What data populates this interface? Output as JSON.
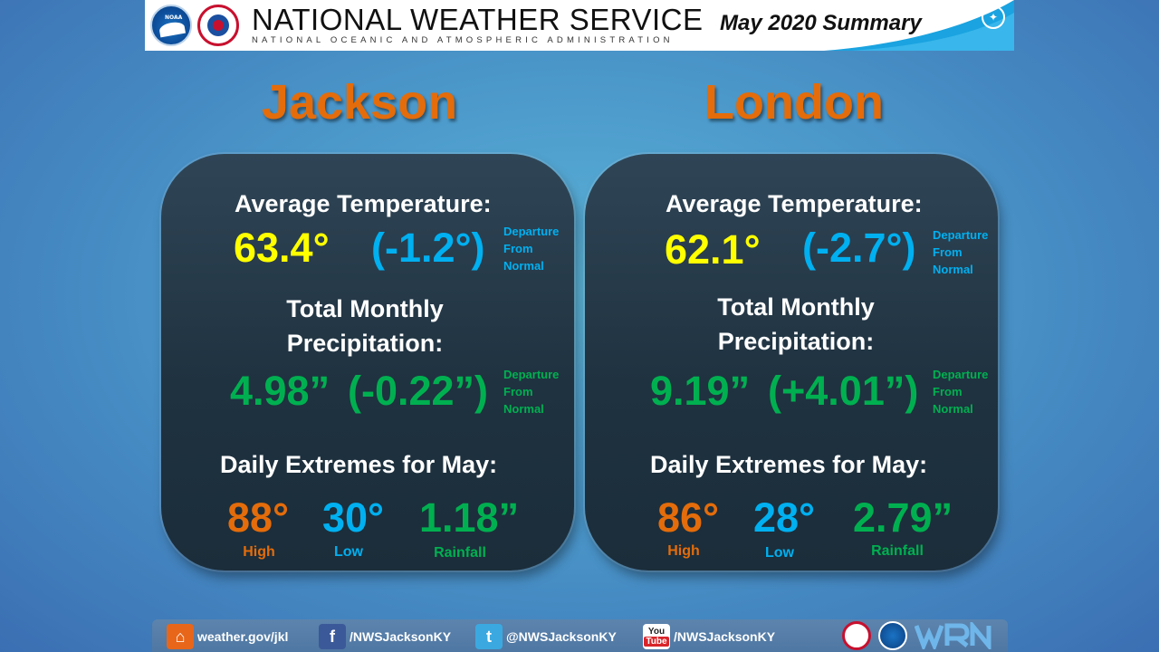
{
  "header": {
    "logo_left_text": "NOAA",
    "title": "NATIONAL WEATHER SERVICE",
    "subtitle": "NATIONAL OCEANIC AND ATMOSPHERIC ADMINISTRATION",
    "summary": "May 2020 Summary"
  },
  "cities": [
    {
      "name": "Jackson",
      "avg_temp_label": "Average Temperature:",
      "avg_temp": "63.4°",
      "avg_temp_departure": "(-1.2°)",
      "departure_note": [
        "Departure",
        "From",
        "Normal"
      ],
      "precip_label_1": "Total Monthly",
      "precip_label_2": "Precipitation:",
      "precip_value": "4.98”",
      "precip_departure": "(-0.22”)",
      "extremes_label": "Daily Extremes for May:",
      "high": "88°",
      "high_label": "High",
      "low": "30°",
      "low_label": "Low",
      "rain": "1.18”",
      "rain_label": "Rainfall"
    },
    {
      "name": "London",
      "avg_temp_label": "Average Temperature:",
      "avg_temp": "62.1°",
      "avg_temp_departure": "(-2.7°)",
      "departure_note": [
        "Departure",
        "From",
        "Normal"
      ],
      "precip_label_1": "Total Monthly",
      "precip_label_2": "Precipitation:",
      "precip_value": "9.19”",
      "precip_departure": "(+4.01”)",
      "extremes_label": "Daily Extremes for May:",
      "high": "86°",
      "high_label": "High",
      "low": "28°",
      "low_label": "Low",
      "rain": "2.79”",
      "rain_label": "Rainfall"
    }
  ],
  "footer": {
    "web": "weather.gov/jkl",
    "facebook": "/NWSJacksonKY",
    "twitter": "@NWSJacksonKY",
    "youtube": "/NWSJacksonKY",
    "youtube_icon_text_1": "You",
    "youtube_icon_text_2": "Tube"
  },
  "colors": {
    "city": "#e46c0a",
    "temp": "#ffff00",
    "departure": "#00b0f0",
    "precip": "#00b050",
    "high": "#e46c0a",
    "low": "#00b0f0",
    "rain": "#00b050"
  },
  "icons": [
    "noaa-logo-icon",
    "nws-logo-icon",
    "seal-icon",
    "home-icon",
    "facebook-icon",
    "twitter-icon",
    "youtube-icon",
    "wrn-logo-icon"
  ]
}
